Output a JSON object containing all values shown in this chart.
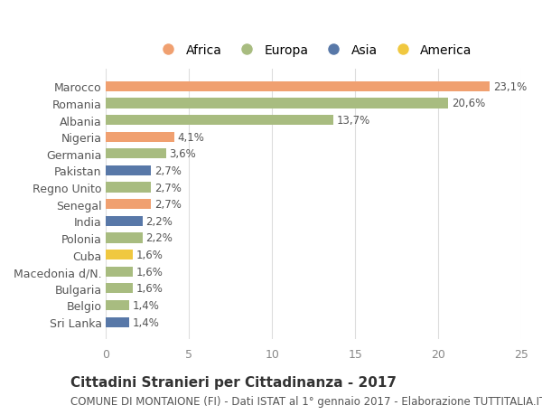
{
  "countries": [
    "Sri Lanka",
    "Belgio",
    "Bulgaria",
    "Macedonia d/N.",
    "Cuba",
    "Polonia",
    "India",
    "Senegal",
    "Regno Unito",
    "Pakistan",
    "Germania",
    "Nigeria",
    "Albania",
    "Romania",
    "Marocco"
  ],
  "values": [
    1.4,
    1.4,
    1.6,
    1.6,
    1.6,
    2.2,
    2.2,
    2.7,
    2.7,
    2.7,
    3.6,
    4.1,
    13.7,
    20.6,
    23.1
  ],
  "labels": [
    "1,4%",
    "1,4%",
    "1,6%",
    "1,6%",
    "1,6%",
    "2,2%",
    "2,2%",
    "2,7%",
    "2,7%",
    "2,7%",
    "3,6%",
    "4,1%",
    "13,7%",
    "20,6%",
    "23,1%"
  ],
  "continents": [
    "Asia",
    "Europa",
    "Europa",
    "Europa",
    "America",
    "Europa",
    "Asia",
    "Africa",
    "Europa",
    "Asia",
    "Europa",
    "Africa",
    "Europa",
    "Europa",
    "Africa"
  ],
  "colors": {
    "Africa": "#F0A070",
    "Europa": "#A8BC80",
    "Asia": "#5878A8",
    "America": "#F0C840"
  },
  "legend_order": [
    "Africa",
    "Europa",
    "Asia",
    "America"
  ],
  "title": "Cittadini Stranieri per Cittadinanza - 2017",
  "subtitle": "COMUNE DI MONTAIONE (FI) - Dati ISTAT al 1° gennaio 2017 - Elaborazione TUTTITALIA.IT",
  "xlim": [
    0,
    25
  ],
  "xticks": [
    0,
    5,
    10,
    15,
    20,
    25
  ],
  "background_color": "#ffffff",
  "bar_height": 0.6,
  "title_fontsize": 11,
  "subtitle_fontsize": 8.5,
  "label_fontsize": 8.5,
  "tick_fontsize": 9,
  "legend_fontsize": 10
}
